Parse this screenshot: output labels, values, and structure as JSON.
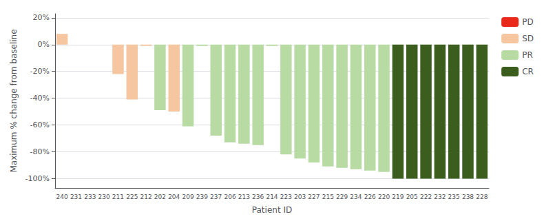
{
  "chart_data": {
    "type": "bar",
    "categories": [
      "240",
      "231",
      "233",
      "230",
      "211",
      "225",
      "212",
      "202",
      "204",
      "209",
      "239",
      "237",
      "206",
      "213",
      "236",
      "214",
      "223",
      "203",
      "227",
      "215",
      "229",
      "234",
      "226",
      "220",
      "219",
      "205",
      "222",
      "232",
      "235",
      "238",
      "228"
    ],
    "series": [
      {
        "name": "PD",
        "color": "#e8291c",
        "values": [
          null,
          null,
          null,
          null,
          null,
          null,
          null,
          null,
          null,
          null,
          null,
          null,
          null,
          null,
          null,
          null,
          null,
          null,
          null,
          null,
          null,
          null,
          null,
          null,
          null,
          null,
          null,
          null,
          null,
          null,
          null
        ]
      },
      {
        "name": "SD",
        "color": "#f5c6a0",
        "values": [
          8,
          0,
          0,
          0,
          -22,
          -41,
          -1,
          null,
          -50,
          null,
          null,
          null,
          null,
          null,
          null,
          null,
          null,
          null,
          null,
          null,
          null,
          null,
          null,
          null,
          null,
          null,
          null,
          null,
          null,
          null,
          null
        ]
      },
      {
        "name": "PR",
        "color": "#b8dba4",
        "values": [
          null,
          null,
          null,
          null,
          null,
          null,
          null,
          -49,
          null,
          -61,
          -1,
          -68,
          -73,
          -74,
          -75,
          -1,
          -82,
          -85,
          -88,
          -91,
          -92,
          -93,
          -94,
          -95,
          null,
          null,
          null,
          null,
          null,
          null,
          null
        ]
      },
      {
        "name": "CR",
        "color": "#3b5e1f",
        "values": [
          null,
          null,
          null,
          null,
          null,
          null,
          null,
          null,
          null,
          null,
          null,
          null,
          null,
          null,
          null,
          null,
          null,
          null,
          null,
          null,
          null,
          null,
          null,
          null,
          -100,
          -100,
          -100,
          -100,
          -100,
          -100,
          -100
        ]
      }
    ],
    "xlabel": "Patient ID",
    "ylabel": "Maximum % change from baseline",
    "ylim": [
      -107,
      23
    ],
    "yticks": [
      {
        "value": 20,
        "label": "20%"
      },
      {
        "value": 0,
        "label": "0%"
      },
      {
        "value": -20,
        "label": "-20%"
      },
      {
        "value": -40,
        "label": "-40%"
      },
      {
        "value": -60,
        "label": "-60%"
      },
      {
        "value": -80,
        "label": "-80%"
      },
      {
        "value": -100,
        "label": "-100%"
      }
    ],
    "grid": true,
    "legend": "right"
  }
}
